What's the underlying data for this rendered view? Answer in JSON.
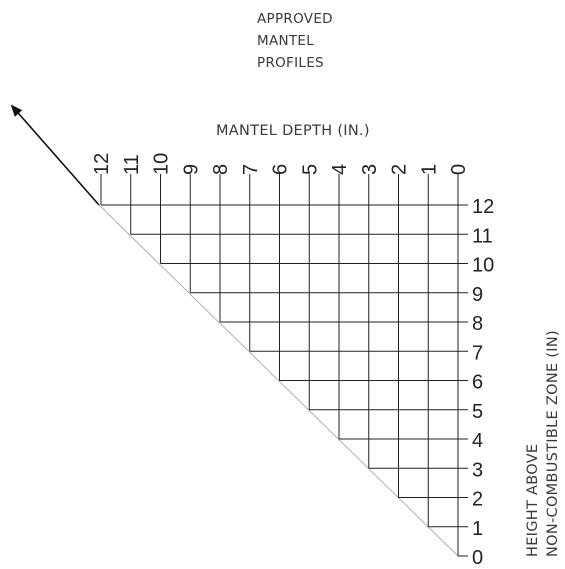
{
  "title_lines": [
    "APPROVED",
    "MANTEL",
    "PROFILES"
  ],
  "x_axis_title": "MANTEL DEPTH (IN.)",
  "y_axis_title_lines": [
    "HEIGHT ABOVE",
    "NON-COMBUSTIBLE ZONE (IN)"
  ],
  "x_tick_labels": [
    "12",
    "11",
    "10",
    "9",
    "8",
    "7",
    "6",
    "5",
    "4",
    "3",
    "2",
    "1",
    "0"
  ],
  "y_tick_labels": [
    "12",
    "11",
    "10",
    "9",
    "8",
    "7",
    "6",
    "5",
    "4",
    "3",
    "2",
    "1",
    "0"
  ],
  "chart_data": {
    "type": "diagram",
    "x_axis": "MANTEL DEPTH (IN.)",
    "y_axis": "HEIGHT ABOVE NON-COMBUSTIBLE ZONE (IN)",
    "depth_range": [
      0,
      12
    ],
    "height_range": [
      0,
      12
    ],
    "approved_region": "depth <= height",
    "grid_step": 1,
    "arrow": "extends boundary beyond 12"
  }
}
